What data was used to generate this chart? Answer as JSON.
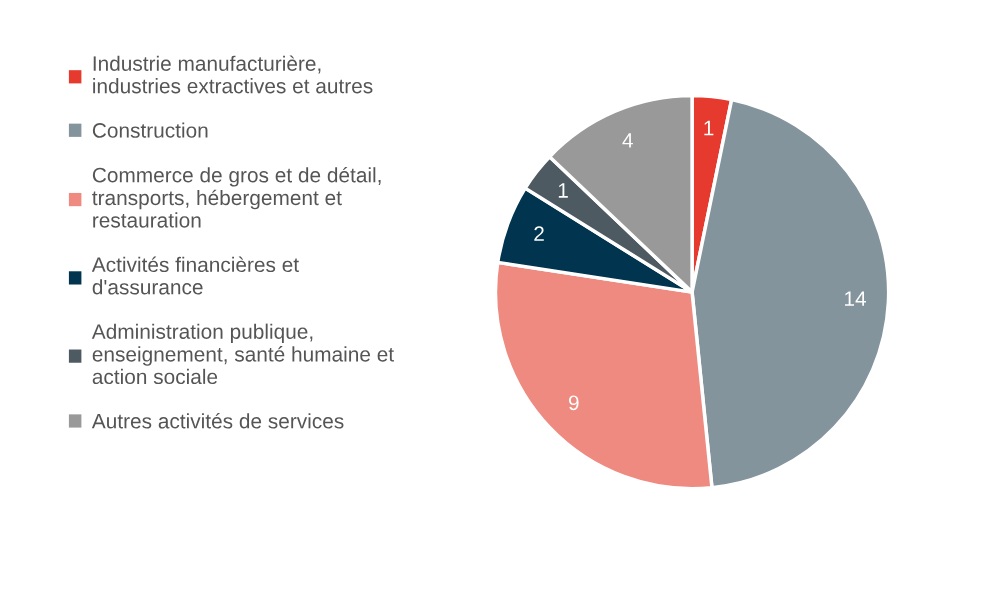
{
  "chart_data": {
    "type": "pie",
    "categories": [
      "Industrie manufacturière,\nindustries extractives et autres",
      "Construction",
      "Commerce de gros et de détail,\ntransports, hébergement et\nrestauration",
      "Activités financières et\nd'assurance",
      "Administration publique,\nenseignement, santé humaine et\naction sociale",
      "Autres activités de services"
    ],
    "values": [
      1,
      14,
      9,
      2,
      1,
      4
    ],
    "colors": [
      "#e63a2e",
      "#84949c",
      "#ee8a80",
      "#00344f",
      "#4d5a61",
      "#999999"
    ],
    "data_labels": true,
    "legend": "left"
  }
}
